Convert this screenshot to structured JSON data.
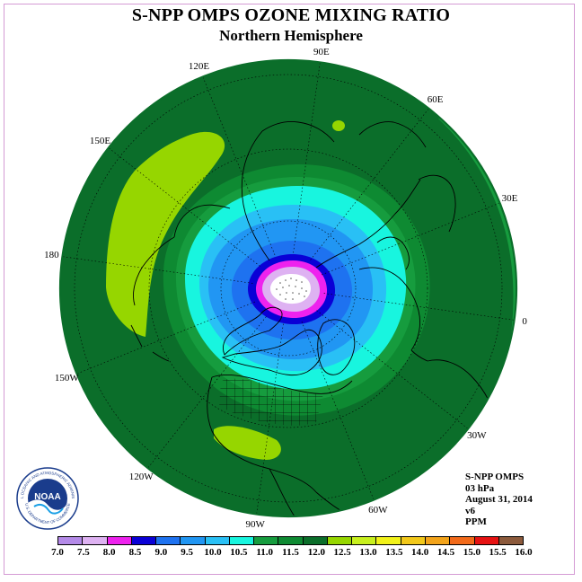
{
  "title": "S-NPP OMPS OZONE MIXING RATIO",
  "subtitle": "Northern Hemisphere",
  "map": {
    "projection": "north polar stereographic",
    "longitude_labels": [
      {
        "text": "90E",
        "lon": 90
      },
      {
        "text": "60E",
        "lon": 60
      },
      {
        "text": "30E",
        "lon": 30
      },
      {
        "text": "0",
        "lon": 0
      },
      {
        "text": "30W",
        "lon": -30
      },
      {
        "text": "60W",
        "lon": -60
      },
      {
        "text": "90W",
        "lon": -90
      },
      {
        "text": "120W",
        "lon": -120
      },
      {
        "text": "150W",
        "lon": -150
      },
      {
        "text": "180",
        "lon": 180
      },
      {
        "text": "150E",
        "lon": 150
      },
      {
        "text": "120E",
        "lon": 120
      }
    ]
  },
  "info": {
    "instrument": "S-NPP OMPS",
    "level": "03 hPa",
    "date": "August 31, 2014",
    "version": "v6",
    "units": "PPM"
  },
  "logo": {
    "text": "NOAA",
    "ring_text": "NATIONAL OCEANIC AND ATMOSPHERIC ADMINISTRATION",
    "ring_text_bottom": "U.S. DEPARTMENT OF COMMERCE"
  },
  "colorbar": {
    "ticks": [
      "7.0",
      "7.5",
      "8.0",
      "8.5",
      "9.0",
      "9.5",
      "10.0",
      "10.5",
      "11.0",
      "11.5",
      "12.0",
      "12.5",
      "13.0",
      "13.5",
      "14.0",
      "14.5",
      "15.0",
      "15.5",
      "16.0"
    ],
    "colors": [
      "#b48ae8",
      "#deb2f2",
      "#ee22ee",
      "#0a00d6",
      "#1e72f0",
      "#2196f3",
      "#29c0f5",
      "#18f5df",
      "#169c3e",
      "#0e8a32",
      "#0b6e2a",
      "#96d600",
      "#c8f01e",
      "#f2f21a",
      "#f2c81a",
      "#f2a31a",
      "#f26a1a",
      "#e61212",
      "#8c5a3c"
    ]
  }
}
